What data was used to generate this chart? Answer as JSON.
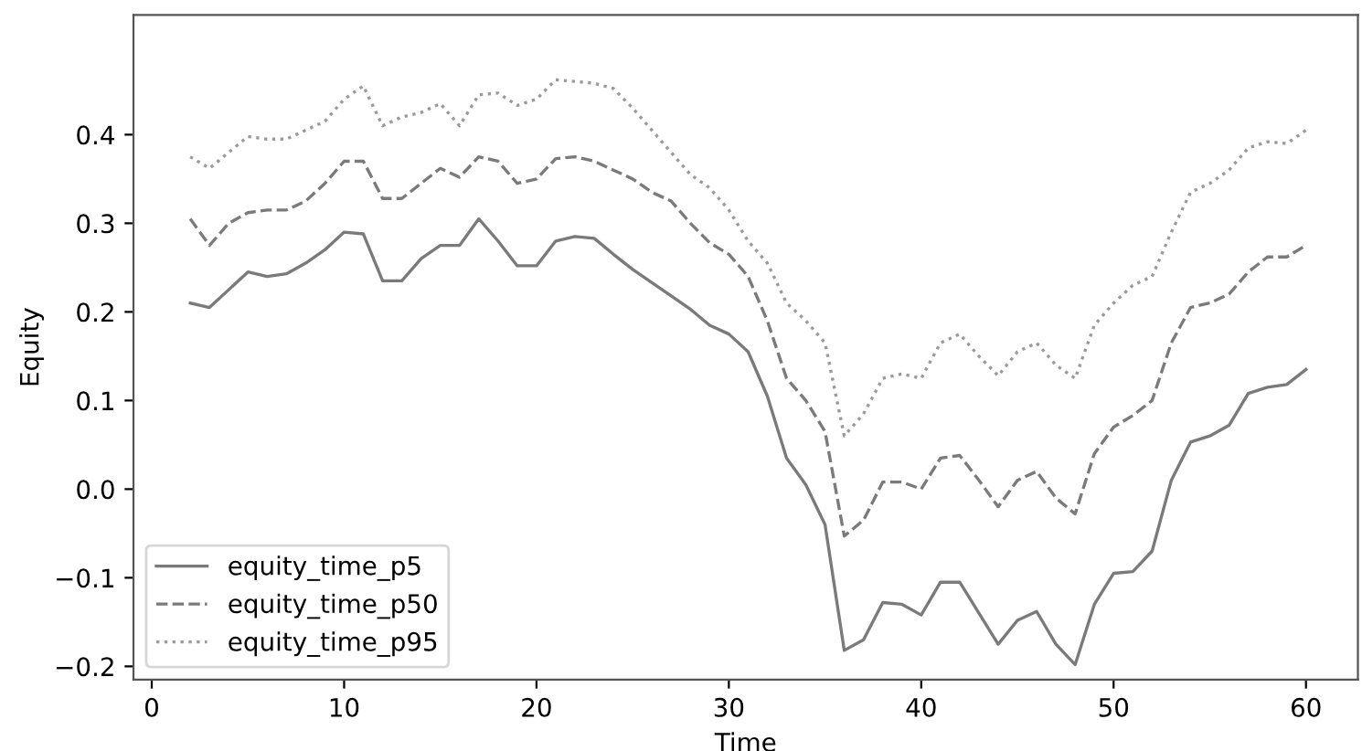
{
  "chart_data": {
    "type": "line",
    "xlabel": "Time",
    "ylabel": "Equity",
    "x": [
      2,
      3,
      4,
      5,
      6,
      7,
      8,
      9,
      10,
      11,
      12,
      13,
      14,
      15,
      16,
      17,
      18,
      19,
      20,
      21,
      22,
      23,
      24,
      25,
      26,
      27,
      28,
      29,
      30,
      31,
      32,
      33,
      34,
      35,
      36,
      37,
      38,
      39,
      40,
      41,
      42,
      43,
      44,
      45,
      46,
      47,
      48,
      49,
      50,
      51,
      52,
      53,
      54,
      55,
      56,
      57,
      58,
      59,
      60
    ],
    "series": [
      {
        "name": "equity_time_p5",
        "color": "#7a7a7a",
        "line_style": "solid",
        "values": [
          0.21,
          0.205,
          0.225,
          0.245,
          0.24,
          0.243,
          0.255,
          0.27,
          0.29,
          0.288,
          0.235,
          0.235,
          0.26,
          0.275,
          0.275,
          0.305,
          0.28,
          0.252,
          0.252,
          0.28,
          0.285,
          0.283,
          0.265,
          0.248,
          0.233,
          0.218,
          0.203,
          0.185,
          0.175,
          0.155,
          0.105,
          0.035,
          0.005,
          -0.04,
          -0.182,
          -0.17,
          -0.128,
          -0.13,
          -0.142,
          -0.105,
          -0.105,
          -0.14,
          -0.175,
          -0.148,
          -0.138,
          -0.175,
          -0.198,
          -0.13,
          -0.095,
          -0.093,
          -0.07,
          0.01,
          0.053,
          0.06,
          0.072,
          0.108,
          0.115,
          0.118,
          0.135
        ]
      },
      {
        "name": "equity_time_p50",
        "color": "#7a7a7a",
        "line_style": "dashed",
        "values": [
          0.305,
          0.275,
          0.3,
          0.312,
          0.315,
          0.315,
          0.325,
          0.345,
          0.37,
          0.37,
          0.328,
          0.328,
          0.345,
          0.362,
          0.352,
          0.375,
          0.37,
          0.345,
          0.35,
          0.373,
          0.375,
          0.37,
          0.36,
          0.35,
          0.335,
          0.325,
          0.3,
          0.278,
          0.265,
          0.24,
          0.19,
          0.125,
          0.1,
          0.065,
          -0.053,
          -0.035,
          0.008,
          0.008,
          0.0,
          0.035,
          0.038,
          0.01,
          -0.02,
          0.01,
          0.02,
          -0.01,
          -0.028,
          0.04,
          0.07,
          0.083,
          0.1,
          0.165,
          0.205,
          0.21,
          0.22,
          0.245,
          0.262,
          0.262,
          0.275
        ]
      },
      {
        "name": "equity_time_p95",
        "color": "#9a9a9a",
        "line_style": "dotted",
        "values": [
          0.375,
          0.362,
          0.38,
          0.398,
          0.395,
          0.395,
          0.405,
          0.415,
          0.44,
          0.455,
          0.41,
          0.42,
          0.425,
          0.435,
          0.41,
          0.445,
          0.447,
          0.433,
          0.44,
          0.462,
          0.46,
          0.458,
          0.452,
          0.43,
          0.405,
          0.38,
          0.355,
          0.34,
          0.315,
          0.28,
          0.255,
          0.21,
          0.19,
          0.165,
          0.06,
          0.085,
          0.125,
          0.13,
          0.125,
          0.165,
          0.175,
          0.15,
          0.128,
          0.155,
          0.165,
          0.14,
          0.125,
          0.185,
          0.21,
          0.23,
          0.24,
          0.29,
          0.335,
          0.345,
          0.36,
          0.385,
          0.392,
          0.39,
          0.405
        ]
      }
    ],
    "xlim": [
      -0.95,
      62.7
    ],
    "ylim": [
      -0.215,
      0.535
    ],
    "xticks": [
      0,
      10,
      20,
      30,
      40,
      50,
      60
    ],
    "yticks": [
      {
        "value": -0.2,
        "label": "−0.2"
      },
      {
        "value": -0.1,
        "label": "−0.1"
      },
      {
        "value": 0,
        "label": "0.0"
      },
      0.1,
      0.2,
      0.3,
      0.4
    ],
    "grid": false,
    "legend": "bottom left"
  }
}
